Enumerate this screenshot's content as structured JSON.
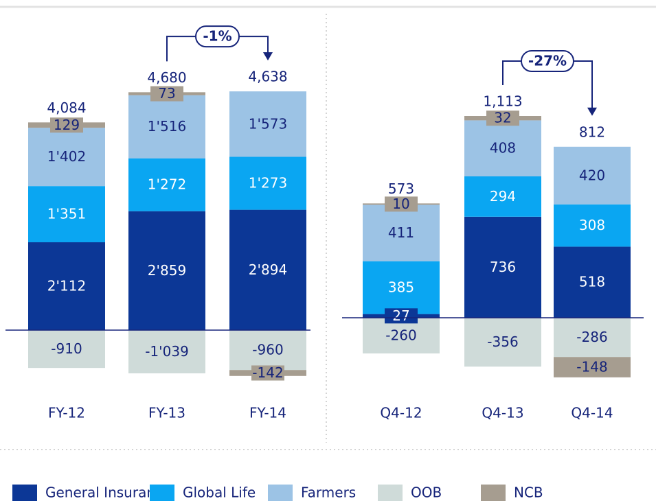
{
  "chart_data": {
    "type": "stacked_bar",
    "categories": [
      "FY-12",
      "FY-13",
      "FY-14",
      "Q4-12",
      "Q4-13",
      "Q4-14"
    ],
    "series": [
      {
        "name": "General Insurance",
        "color": "#0c3796",
        "values": [
          2112,
          2859,
          2894,
          27,
          736,
          518
        ],
        "value_labels": [
          "2'112",
          "2'859",
          "2'894",
          "27",
          "736",
          "518"
        ]
      },
      {
        "name": "Global Life",
        "color": "#0aa6f2",
        "values": [
          1351,
          1272,
          1273,
          385,
          294,
          308
        ],
        "value_labels": [
          "1'351",
          "1'272",
          "1'273",
          "385",
          "294",
          "308"
        ]
      },
      {
        "name": "Farmers",
        "color": "#9cc3e5",
        "values": [
          1402,
          1516,
          1573,
          411,
          408,
          420
        ],
        "value_labels": [
          "1'402",
          "1'516",
          "1'573",
          "411",
          "408",
          "420"
        ]
      },
      {
        "name": "OOB",
        "color": "#cfdbd9",
        "values": [
          -910,
          -1039,
          -960,
          -260,
          -356,
          -286
        ],
        "value_labels": [
          "-910",
          "-1'039",
          "-960",
          "-260",
          "-356",
          "-286"
        ]
      },
      {
        "name": "NCB",
        "color": "#a69d90",
        "values": [
          129,
          73,
          -142,
          10,
          32,
          -148
        ],
        "value_labels": [
          "129",
          "73",
          "-142",
          "10",
          "32",
          "-148"
        ]
      }
    ],
    "totals": [
      4084,
      4680,
      4638,
      573,
      1113,
      812
    ],
    "total_labels": [
      "4,084",
      "4,680",
      "4,638",
      "573",
      "1,113",
      "812"
    ],
    "changes": [
      {
        "label": "-1%",
        "from": 1,
        "to": 2
      },
      {
        "label": "-27%",
        "from": 4,
        "to": 5
      }
    ]
  }
}
